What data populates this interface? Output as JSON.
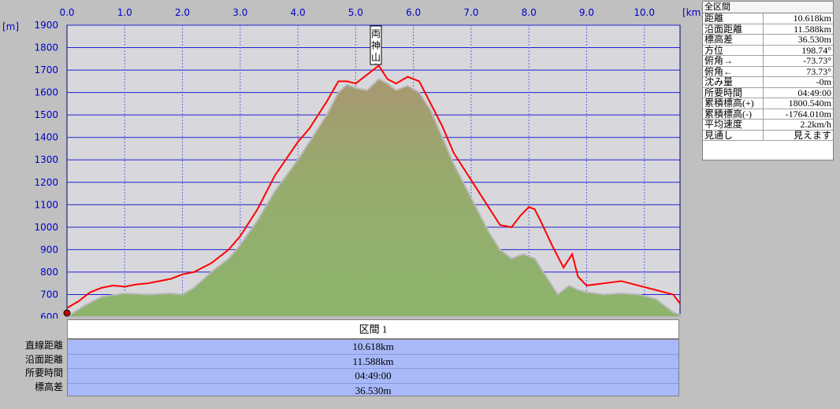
{
  "chart_data": {
    "type": "area",
    "xunit": "[km]",
    "yunit": "[m]",
    "xlim": [
      0,
      10.618
    ],
    "ylim": [
      600,
      1900
    ],
    "xticks": [
      "0.0",
      "1.0",
      "2.0",
      "3.0",
      "4.0",
      "5.0",
      "6.0",
      "7.0",
      "8.0",
      "9.0",
      "10.0"
    ],
    "yticks": [
      "600",
      "700",
      "800",
      "900",
      "1000",
      "1100",
      "1200",
      "1300",
      "1400",
      "1500",
      "1600",
      "1700",
      "1800",
      "1900"
    ],
    "grid": true,
    "series": [
      {
        "kind": "terrain-area",
        "color": "#8cb46c",
        "x": [
          0.0,
          0.3,
          0.6,
          1.0,
          1.4,
          1.8,
          2.0,
          2.2,
          2.5,
          2.8,
          3.0,
          3.3,
          3.6,
          4.0,
          4.2,
          4.5,
          4.7,
          4.85,
          5.0,
          5.2,
          5.4,
          5.55,
          5.7,
          5.9,
          6.1,
          6.3,
          6.5,
          6.7,
          6.9,
          7.1,
          7.3,
          7.5,
          7.7,
          7.9,
          8.1,
          8.3,
          8.5,
          8.7,
          8.85,
          9.0,
          9.3,
          9.6,
          9.9,
          10.2,
          10.5,
          10.618
        ],
        "y": [
          600,
          650,
          690,
          705,
          700,
          705,
          700,
          730,
          800,
          860,
          920,
          1030,
          1160,
          1300,
          1380,
          1500,
          1600,
          1635,
          1620,
          1610,
          1660,
          1640,
          1610,
          1630,
          1600,
          1520,
          1400,
          1280,
          1180,
          1080,
          980,
          900,
          860,
          880,
          860,
          780,
          700,
          740,
          720,
          710,
          700,
          705,
          700,
          680,
          620,
          610
        ]
      },
      {
        "kind": "route-line",
        "color": "#ff0000",
        "x": [
          0.0,
          0.2,
          0.4,
          0.6,
          0.8,
          1.0,
          1.2,
          1.4,
          1.6,
          1.8,
          2.0,
          2.2,
          2.5,
          2.8,
          3.0,
          3.3,
          3.6,
          4.0,
          4.2,
          4.5,
          4.7,
          4.85,
          5.0,
          5.2,
          5.4,
          5.55,
          5.7,
          5.9,
          6.1,
          6.3,
          6.5,
          6.7,
          6.9,
          7.1,
          7.3,
          7.5,
          7.7,
          7.85,
          8.0,
          8.1,
          8.2,
          8.4,
          8.6,
          8.75,
          8.85,
          9.0,
          9.3,
          9.6,
          9.9,
          10.2,
          10.5,
          10.618
        ],
        "y": [
          640,
          670,
          710,
          730,
          740,
          735,
          745,
          750,
          760,
          770,
          790,
          800,
          840,
          900,
          960,
          1080,
          1230,
          1380,
          1440,
          1560,
          1650,
          1650,
          1640,
          1680,
          1720,
          1660,
          1640,
          1670,
          1650,
          1550,
          1450,
          1330,
          1250,
          1170,
          1090,
          1010,
          1000,
          1050,
          1090,
          1080,
          1030,
          920,
          820,
          880,
          780,
          740,
          750,
          760,
          740,
          720,
          700,
          660
        ]
      }
    ],
    "annotations": [
      {
        "text": "両神山",
        "x": 5.35,
        "y": 1730
      }
    ]
  },
  "stats": {
    "title": "全区間",
    "rows": [
      {
        "key": "距離",
        "value": "10.618km"
      },
      {
        "key": "沿面距離",
        "value": "11.588km"
      },
      {
        "key": "標高差",
        "value": "36.530m"
      },
      {
        "key": "方位",
        "value": "198.74°"
      },
      {
        "key": "俯角→",
        "value": "-73.73°"
      },
      {
        "key": "俯角←",
        "value": "73.73°"
      },
      {
        "key": "沈み量",
        "value": "-0m"
      },
      {
        "key": "所要時間",
        "value": "04:49:00"
      },
      {
        "key": "累積標高(+)",
        "value": "1800.540m"
      },
      {
        "key": "累積標高(-)",
        "value": "-1764.010m"
      },
      {
        "key": "平均速度",
        "value": "2.2km/h"
      },
      {
        "key": "見通し",
        "value": "見えます"
      }
    ]
  },
  "section": {
    "header": "区間 1",
    "labels": [
      "直線距離",
      "沿面距離",
      "所要時間",
      "標高差"
    ],
    "values": [
      "10.618km",
      "11.588km",
      "04:49:00",
      "36.530m"
    ]
  },
  "colors": {
    "plot_bg": "#d8d8dc",
    "grid_h": "#2020d0",
    "grid_v": "#6060e0",
    "tick_text": "#0000c8",
    "section_bg": "#a8b8f8"
  }
}
